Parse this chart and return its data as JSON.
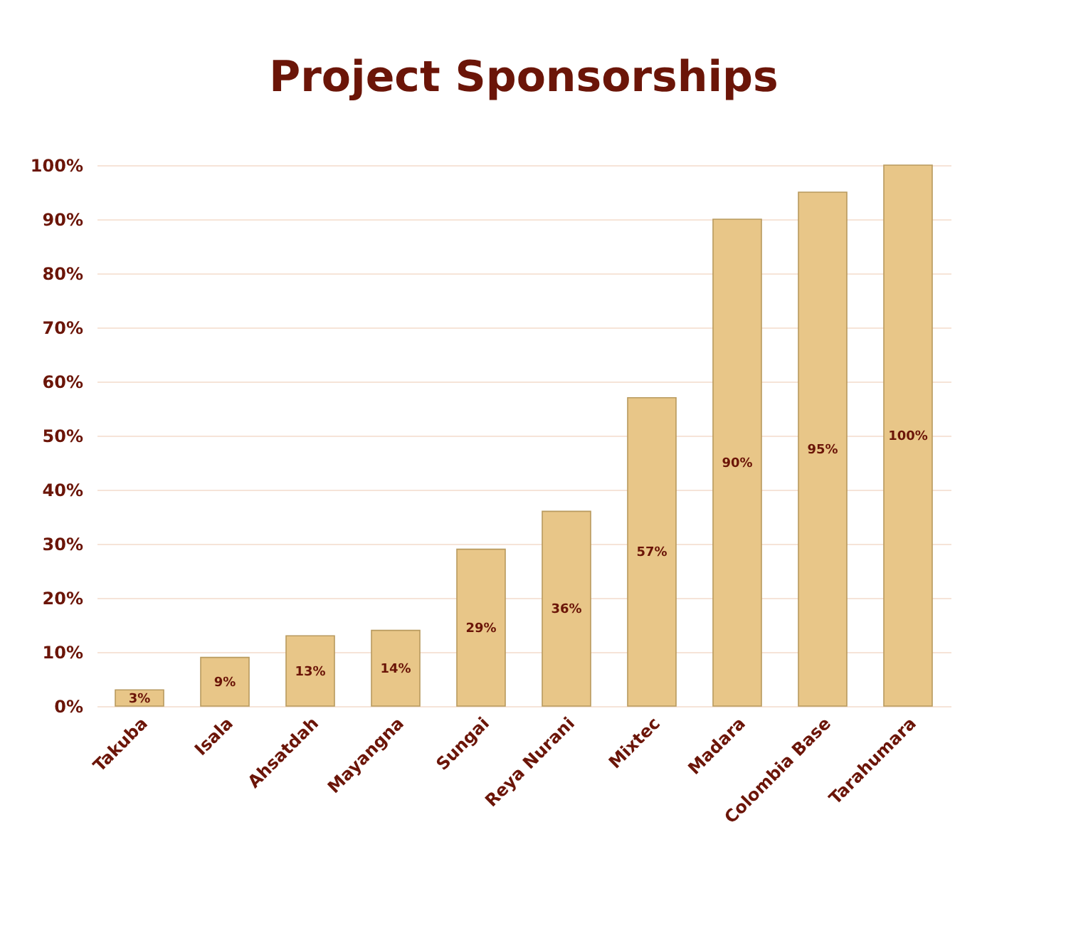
{
  "chart_data": {
    "type": "bar",
    "title": "Project Sponsorships",
    "categories": [
      "Takuba",
      "Isala",
      "Ahsatdah",
      "Mayangna",
      "Sungai",
      "Reya Nurani",
      "Mixtec",
      "Madara",
      "Colombia Base",
      "Tarahumara"
    ],
    "values": [
      3,
      9,
      13,
      14,
      29,
      36,
      57,
      90,
      95,
      100
    ],
    "value_labels": [
      "3%",
      "9%",
      "13%",
      "14%",
      "29%",
      "36%",
      "57%",
      "90%",
      "95%",
      "100%"
    ],
    "color": "#e8c688",
    "ylim": [
      0,
      100
    ],
    "yticks": [
      {
        "value": 0,
        "label": "0%"
      },
      {
        "value": 10,
        "label": "10%"
      },
      {
        "value": 20,
        "label": "20%"
      },
      {
        "value": 30,
        "label": "30%"
      },
      {
        "value": 40,
        "label": "40%"
      },
      {
        "value": 50,
        "label": "50%"
      },
      {
        "value": 60,
        "label": "60%"
      },
      {
        "value": 70,
        "label": "70%"
      },
      {
        "value": 80,
        "label": "80%"
      },
      {
        "value": 90,
        "label": "90%"
      },
      {
        "value": 100,
        "label": "100%"
      }
    ],
    "grid": "y"
  }
}
